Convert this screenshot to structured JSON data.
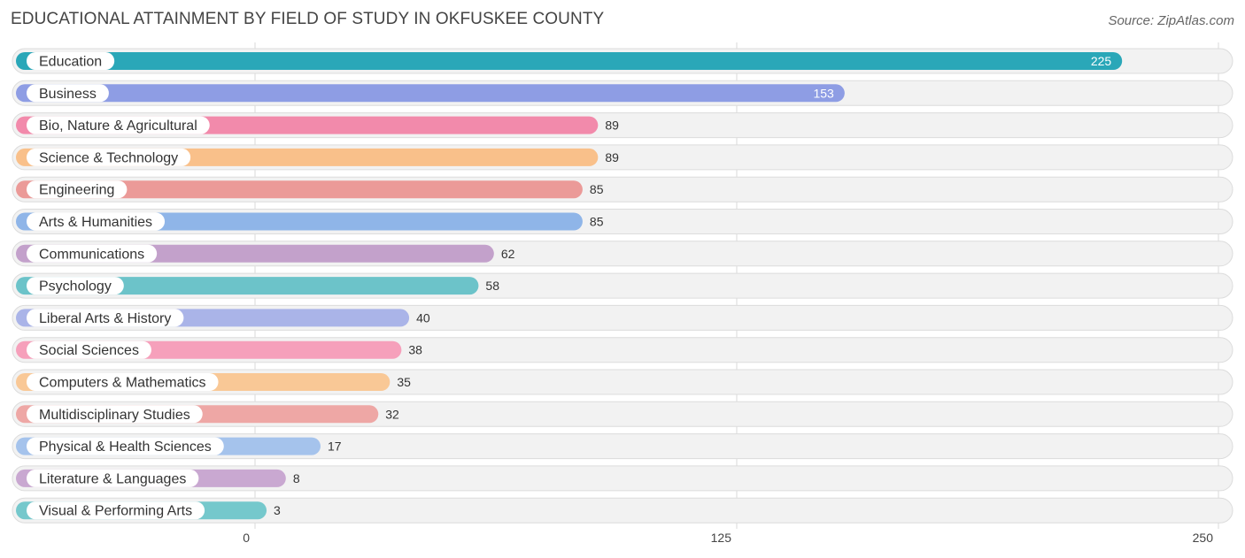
{
  "chart_data": {
    "type": "bar",
    "orientation": "horizontal",
    "title": "EDUCATIONAL ATTAINMENT BY FIELD OF STUDY IN OKFUSKEE COUNTY",
    "source": "Source: ZipAtlas.com",
    "xlabel": "",
    "ylabel": "",
    "xlim": [
      0,
      250
    ],
    "ticks": [
      0,
      125,
      250
    ],
    "tick_labels": [
      "0",
      "125",
      "250"
    ],
    "grid": true,
    "categories": [
      "Education",
      "Business",
      "Bio, Nature & Agricultural",
      "Science & Technology",
      "Engineering",
      "Arts & Humanities",
      "Communications",
      "Psychology",
      "Liberal Arts & History",
      "Social Sciences",
      "Computers & Mathematics",
      "Multidisciplinary Studies",
      "Physical & Health Sciences",
      "Literature & Languages",
      "Visual & Performing Arts"
    ],
    "values": [
      225,
      153,
      89,
      89,
      85,
      85,
      62,
      58,
      40,
      38,
      35,
      32,
      17,
      8,
      3
    ],
    "value_labels": [
      "225",
      "153",
      "89",
      "89",
      "85",
      "85",
      "62",
      "58",
      "40",
      "38",
      "35",
      "32",
      "17",
      "8",
      "3"
    ],
    "colors": [
      "#2aa7b8",
      "#8e9de4",
      "#f28aab",
      "#f9c08a",
      "#eb9a98",
      "#8fb5e8",
      "#c3a1cb",
      "#6cc3c9",
      "#aab4e8",
      "#f6a0bb",
      "#f9c896",
      "#eea7a5",
      "#a5c3ec",
      "#c9a8d1",
      "#75c8cc"
    ]
  }
}
